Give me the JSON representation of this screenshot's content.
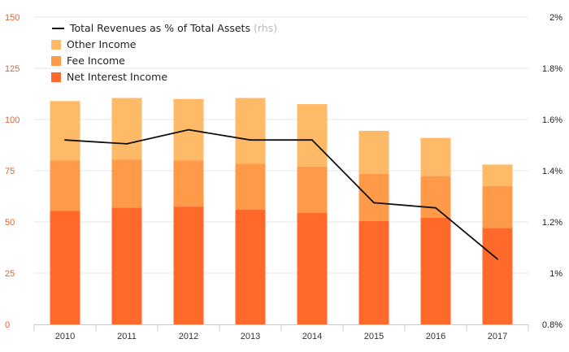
{
  "chart_data": {
    "type": "bar",
    "stacked": true,
    "categories": [
      "2010",
      "2011",
      "2012",
      "2013",
      "2014",
      "2015",
      "2016",
      "2017"
    ],
    "series": [
      {
        "name": "Net Interest Income",
        "color": "#ff6a2b",
        "values": [
          55.5,
          57,
          57.5,
          56,
          54.5,
          50.5,
          52,
          47
        ]
      },
      {
        "name": "Fee Income",
        "color": "#ff9a48",
        "values": [
          24.5,
          23.5,
          22.5,
          22.5,
          22.5,
          23,
          20.5,
          20.5
        ]
      },
      {
        "name": "Other Income",
        "color": "#ffba68",
        "values": [
          29,
          30,
          30,
          32,
          30.5,
          21,
          18.5,
          10.5
        ]
      }
    ],
    "line_series": {
      "name": "Total Revenues as % of Total Assets",
      "suffix": "(rhs)",
      "color": "#111111",
      "values": [
        1.52,
        1.505,
        1.56,
        1.52,
        1.52,
        1.275,
        1.255,
        1.055
      ]
    },
    "ylim_left": [
      0,
      150
    ],
    "yticks_left": [
      "0",
      "25",
      "50",
      "75",
      "100",
      "125",
      "150"
    ],
    "ylim_right": [
      0.8,
      2.0
    ],
    "yticks_right": [
      "0.8%",
      "1%",
      "1.2%",
      "1.4%",
      "1.6%",
      "1.8%",
      "2%"
    ],
    "legend_position": "top-left",
    "grid": true
  }
}
